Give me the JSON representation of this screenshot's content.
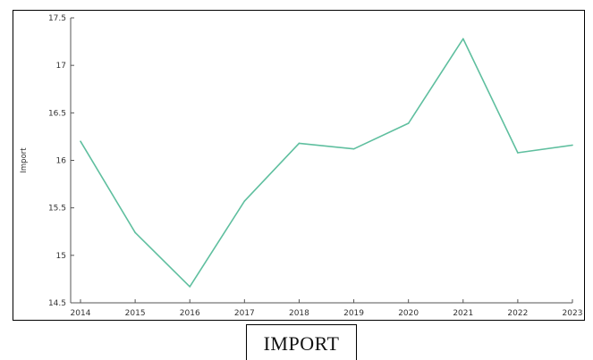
{
  "caption": "IMPORT",
  "chart_data": {
    "type": "line",
    "title": "",
    "xlabel": "",
    "ylabel": "Import",
    "x": [
      "2014",
      "2015",
      "2016",
      "2017",
      "2018",
      "2019",
      "2020",
      "2021",
      "2022",
      "2023"
    ],
    "series": [
      {
        "values": [
          16.2,
          15.24,
          14.67,
          15.57,
          16.18,
          16.12,
          16.39,
          17.28,
          16.08,
          16.16
        ]
      }
    ],
    "yticks": [
      "14.5",
      "15",
      "15.5",
      "16",
      "16.5",
      "17",
      "17.5"
    ],
    "ylim": [
      14.5,
      17.5
    ],
    "grid": false,
    "legend": "none",
    "line_color": "#5fbf9f"
  }
}
